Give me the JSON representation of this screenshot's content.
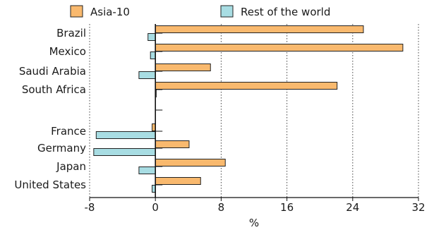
{
  "chart_data": {
    "type": "bar",
    "orientation": "horizontal",
    "categories": [
      "Brazil",
      "Mexico",
      "Saudi Arabia",
      "South Africa",
      "",
      "France",
      "Germany",
      "Japan",
      "United States"
    ],
    "series": [
      {
        "name": "Asia-10",
        "color": "#f9b96e",
        "values": [
          25.3,
          30.1,
          6.7,
          22.1,
          null,
          -0.4,
          4.1,
          8.5,
          5.5
        ]
      },
      {
        "name": "Rest of the world",
        "color": "#a8dde3",
        "values": [
          -0.9,
          -0.6,
          -2.0,
          0.1,
          null,
          -7.2,
          -7.5,
          -2.0,
          -0.4
        ]
      }
    ],
    "xlim": [
      -8,
      32
    ],
    "xticks": [
      "-8",
      "0",
      "8",
      "16",
      "24",
      "32"
    ],
    "xlabel": "%",
    "ylabel": "",
    "title": "",
    "grid": "vertical dotted lines at x ticks",
    "legend": "top-left"
  }
}
